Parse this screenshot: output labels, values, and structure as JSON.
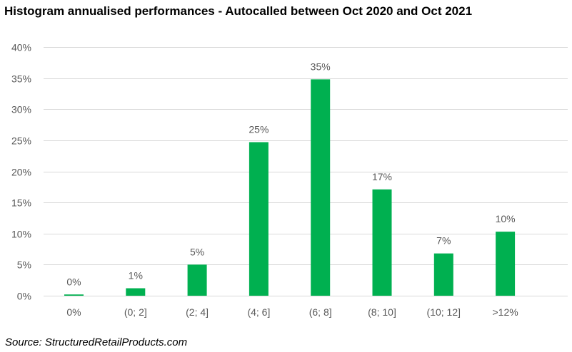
{
  "chart_data": {
    "type": "bar",
    "title": "Histogram annualised performances - Autocalled  between Oct 2020 and Oct 2021",
    "categories": [
      "0%",
      "(0; 2]",
      "(2; 4]",
      "(4; 6]",
      "(6; 8]",
      "(8; 10]",
      "(10; 12]",
      ">12%"
    ],
    "values": [
      0.2,
      1.2,
      5.0,
      24.7,
      34.8,
      17.1,
      6.8,
      10.3
    ],
    "data_labels": [
      "0%",
      "1%",
      "5%",
      "25%",
      "35%",
      "17%",
      "7%",
      "10%"
    ],
    "yticks": [
      "0%",
      "5%",
      "10%",
      "15%",
      "20%",
      "25%",
      "30%",
      "35%",
      "40%"
    ],
    "ylim": [
      0,
      40
    ],
    "xlabel": "",
    "ylabel": "",
    "grid": true,
    "legend": "none",
    "bar_color": "#00b050",
    "grid_color": "#d9d9d9",
    "label_color": "#595959"
  },
  "source": "Source: StructuredRetailProducts.com"
}
